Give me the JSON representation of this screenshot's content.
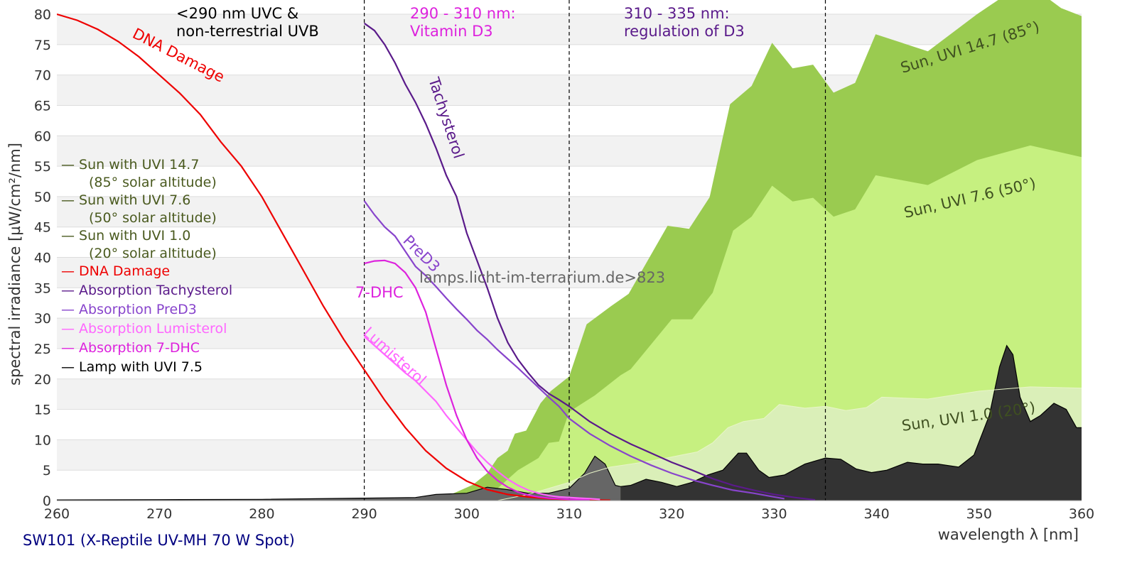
{
  "chart_data": {
    "type": "area",
    "xlabel": "wavelength λ [nm]",
    "ylabel": "spectral irradiance [µW/cm²/nm]",
    "xlim": [
      260,
      360
    ],
    "ylim": [
      0,
      80
    ],
    "xticks": [
      260,
      270,
      280,
      290,
      300,
      310,
      320,
      330,
      340,
      350,
      360
    ],
    "yticks": [
      0,
      5,
      10,
      15,
      20,
      25,
      30,
      35,
      40,
      45,
      50,
      55,
      60,
      65,
      70,
      75,
      80
    ],
    "grid": true,
    "footer": "SW101 (X-Reptile UV-MH 70 W Spot)",
    "watermark": "lamps.licht-im-terrarium.de>823",
    "regions": [
      {
        "boundary": 290,
        "label_line1": "<290 nm UVC &",
        "label_line2": "non-terrestrial UVB",
        "color": "#000000"
      },
      {
        "boundary": 310,
        "label_line1": "290 - 310 nm:",
        "label_line2": "Vitamin D3",
        "color": "#dd22dd"
      },
      {
        "boundary": 335,
        "label_line1": "310 - 335 nm:",
        "label_line2": "regulation of D3",
        "color": "#5a1a8a"
      }
    ],
    "legend": [
      {
        "label": "— Sun with UVI 14.7",
        "sub": "(85° solar altitude)",
        "color": "#4a5a1f"
      },
      {
        "label": "— Sun with UVI 7.6",
        "sub": "(50° solar altitude)",
        "color": "#4a5a1f"
      },
      {
        "label": "— Sun with UVI 1.0",
        "sub": "(20° solar altitude)",
        "color": "#4a5a1f"
      },
      {
        "label": "— DNA Damage",
        "color": "#ee0000"
      },
      {
        "label": "— Absorption Tachysterol",
        "color": "#5a1a8a"
      },
      {
        "label": "— Absorption PreD3",
        "color": "#8844cc"
      },
      {
        "label": "— Absorption Lumisterol",
        "color": "#ff66ff"
      },
      {
        "label": "— Absorption 7-DHC",
        "color": "#dd22dd"
      },
      {
        "label": "— Lamp with UVI 7.5",
        "color": "#000000"
      }
    ],
    "series": [
      {
        "name": "Sun, UVI 14.7 (85°)",
        "kind": "fill",
        "color": "#9acb50",
        "x": [
          297,
          299,
          300.6,
          302,
          303,
          304,
          304.7,
          305.8,
          307.2,
          308.2,
          310,
          311.7,
          314.1,
          315.8,
          319.6,
          321.7,
          323.7,
          325.7,
          327.8,
          329.8,
          331.8,
          333.8,
          335.8,
          337.9,
          339.9,
          345,
          349.8,
          352,
          354,
          356,
          358,
          360
        ],
        "y": [
          0,
          1.4,
          2.6,
          4.5,
          7,
          8.2,
          11,
          11.5,
          16,
          18,
          20.4,
          29,
          32,
          34,
          45.2,
          44.7,
          49.9,
          65.2,
          68.2,
          75.3,
          71.1,
          71.7,
          67.1,
          68.7,
          76.7,
          73.9,
          80,
          82.5,
          83.5,
          83.5,
          81,
          79.7
        ]
      },
      {
        "name": "Sun, UVI 7.6 (50°)",
        "kind": "fill",
        "color": "#c6f080",
        "x": [
          301,
          303,
          305,
          307,
          308,
          309,
          310,
          312.5,
          315,
          316,
          320,
          322,
          324,
          326,
          327.8,
          329.8,
          331.8,
          333.8,
          335.8,
          337.9,
          339.9,
          345,
          349.8,
          355,
          360
        ],
        "y": [
          0,
          2,
          5,
          7,
          9.5,
          9.7,
          14.6,
          17.3,
          20.6,
          21.6,
          29.8,
          29.8,
          34.2,
          44.4,
          46.7,
          51.8,
          49.2,
          49.8,
          46.7,
          47.9,
          53.5,
          51.9,
          56,
          58.4,
          56.5
        ]
      },
      {
        "name": "Sun, UVI 1.0 (20°)",
        "kind": "fill",
        "color": "#daefb8",
        "x": [
          303,
          306,
          308,
          310,
          312,
          314,
          316,
          318,
          319.5,
          321,
          322.5,
          324,
          325.5,
          327,
          329,
          330.5,
          333,
          335,
          337,
          339,
          340.5,
          345,
          350,
          355,
          360
        ],
        "y": [
          0,
          1,
          2,
          3,
          4.5,
          5.5,
          6,
          6.5,
          7,
          7.5,
          8,
          9.5,
          12,
          13,
          13.5,
          15.8,
          15.2,
          15.5,
          14.8,
          15.3,
          17,
          16.7,
          18,
          18.7,
          18.5
        ]
      },
      {
        "name": "Lamp with UVI 7.5",
        "kind": "lamp",
        "color": "#333333",
        "color_below_315": "#666666",
        "x": [
          260,
          270,
          280,
          290,
          295,
          297,
          300,
          302,
          304,
          306,
          308,
          310,
          311.5,
          312.5,
          313.5,
          314.5,
          315,
          316,
          317.5,
          319,
          320.5,
          322,
          323.5,
          325,
          326.5,
          327.3,
          328.5,
          329.5,
          331,
          333,
          335,
          336.5,
          338,
          339.5,
          341,
          343,
          344.5,
          346,
          348,
          349.5,
          351,
          352,
          352.7,
          353.3,
          354,
          355,
          356,
          357.3,
          358.5,
          359.5,
          360
        ],
        "y": [
          0.1,
          0.15,
          0.2,
          0.4,
          0.5,
          1,
          1.2,
          2.2,
          1.8,
          1.2,
          1.2,
          2,
          4.5,
          7.3,
          6,
          2.5,
          2.3,
          2.5,
          3.5,
          3,
          2.3,
          3,
          4.2,
          5,
          7.8,
          7.8,
          5,
          3.8,
          4.2,
          6,
          7,
          6.8,
          5.2,
          4.6,
          5,
          6.3,
          6,
          6,
          5.5,
          7.5,
          14,
          22,
          25.5,
          24,
          17,
          13,
          14,
          16,
          15,
          12,
          12
        ]
      },
      {
        "name": "DNA Damage",
        "kind": "line",
        "color": "#ee0000",
        "x": [
          260,
          262,
          264,
          266,
          268,
          270,
          272,
          274,
          276,
          278,
          280,
          282,
          284,
          286,
          288,
          290,
          292,
          294,
          296,
          298,
          300,
          302,
          304,
          306,
          308,
          310,
          314
        ],
        "y": [
          80,
          79,
          77.5,
          75.5,
          73,
          70,
          67,
          63.5,
          59,
          55,
          50,
          44,
          38,
          32,
          26.5,
          21.5,
          16.5,
          12,
          8.2,
          5.3,
          3.2,
          1.8,
          1,
          0.6,
          0.3,
          0.15,
          0.05
        ]
      },
      {
        "name": "Absorption Tachysterol",
        "kind": "line",
        "color": "#5a1a8a",
        "x": [
          290,
          291,
          292,
          293,
          294,
          295,
          296,
          297,
          298,
          299,
          300,
          301,
          302,
          303,
          304,
          305,
          306,
          307,
          308,
          309,
          310,
          312,
          314,
          316,
          318,
          320,
          322,
          324,
          326,
          328,
          330,
          332,
          334
        ],
        "y": [
          78.5,
          77.3,
          75,
          72,
          68.5,
          65.5,
          62,
          58,
          53.5,
          50,
          44,
          39.5,
          35,
          30,
          26,
          23.2,
          21,
          19,
          17.6,
          16.6,
          15.5,
          13,
          11,
          9.3,
          7.8,
          6.3,
          5,
          3.6,
          2.5,
          1.7,
          1,
          0.5,
          0.1
        ]
      },
      {
        "name": "Absorption PreD3",
        "kind": "line",
        "color": "#8844cc",
        "x": [
          290,
          291,
          292,
          293,
          294,
          295,
          296,
          297,
          298,
          299,
          300,
          301,
          302,
          303,
          304,
          305,
          306,
          307,
          308,
          309,
          310,
          312,
          314,
          316,
          318,
          320,
          322,
          324,
          326,
          328,
          330,
          331
        ],
        "y": [
          49.3,
          47,
          45,
          43.5,
          41,
          38.5,
          37,
          35.2,
          33.3,
          31.5,
          29.8,
          28,
          26.5,
          24.8,
          23.3,
          21.8,
          20.2,
          18.6,
          17,
          15.5,
          13.5,
          11,
          9,
          7.3,
          5.8,
          4.5,
          3.4,
          2.5,
          1.7,
          1.2,
          0.6,
          0.3
        ]
      },
      {
        "name": "Absorption Lumisterol",
        "kind": "line",
        "color": "#ff66ff",
        "x": [
          290,
          291,
          292,
          293,
          294,
          295,
          296,
          297,
          298,
          299,
          300,
          301,
          302,
          303,
          304,
          305,
          306,
          307,
          308,
          309,
          310,
          311,
          312,
          313
        ],
        "y": [
          27,
          25.5,
          24,
          22.5,
          21,
          19.7,
          18,
          16.3,
          14,
          12,
          10,
          8,
          6.3,
          4.8,
          3.5,
          2.5,
          1.7,
          1.2,
          0.8,
          0.6,
          0.5,
          0.4,
          0.3,
          0.2
        ]
      },
      {
        "name": "Absorption 7-DHC",
        "kind": "line",
        "color": "#dd22dd",
        "x": [
          290,
          291,
          292,
          293,
          294,
          295,
          296,
          297,
          298,
          299,
          300,
          301,
          302,
          303,
          304,
          305,
          306,
          307,
          308,
          310,
          312
        ],
        "y": [
          39,
          39.4,
          39.5,
          39,
          37.5,
          35,
          31,
          25,
          19,
          14,
          10,
          7,
          4.8,
          3.3,
          2.2,
          1.4,
          0.9,
          0.6,
          0.4,
          0.2,
          0.1
        ]
      }
    ],
    "annotations": {
      "dna": "DNA Damage",
      "tachysterol": "Tachysterol",
      "pred3": "PreD3",
      "dhc": "7-DHC",
      "lumisterol": "Lumisterol",
      "sun147": "Sun, UVI 14.7 (85°)",
      "sun76": "Sun, UVI 7.6 (50°)",
      "sun10": "Sun, UVI 1.0 (20°)"
    }
  }
}
